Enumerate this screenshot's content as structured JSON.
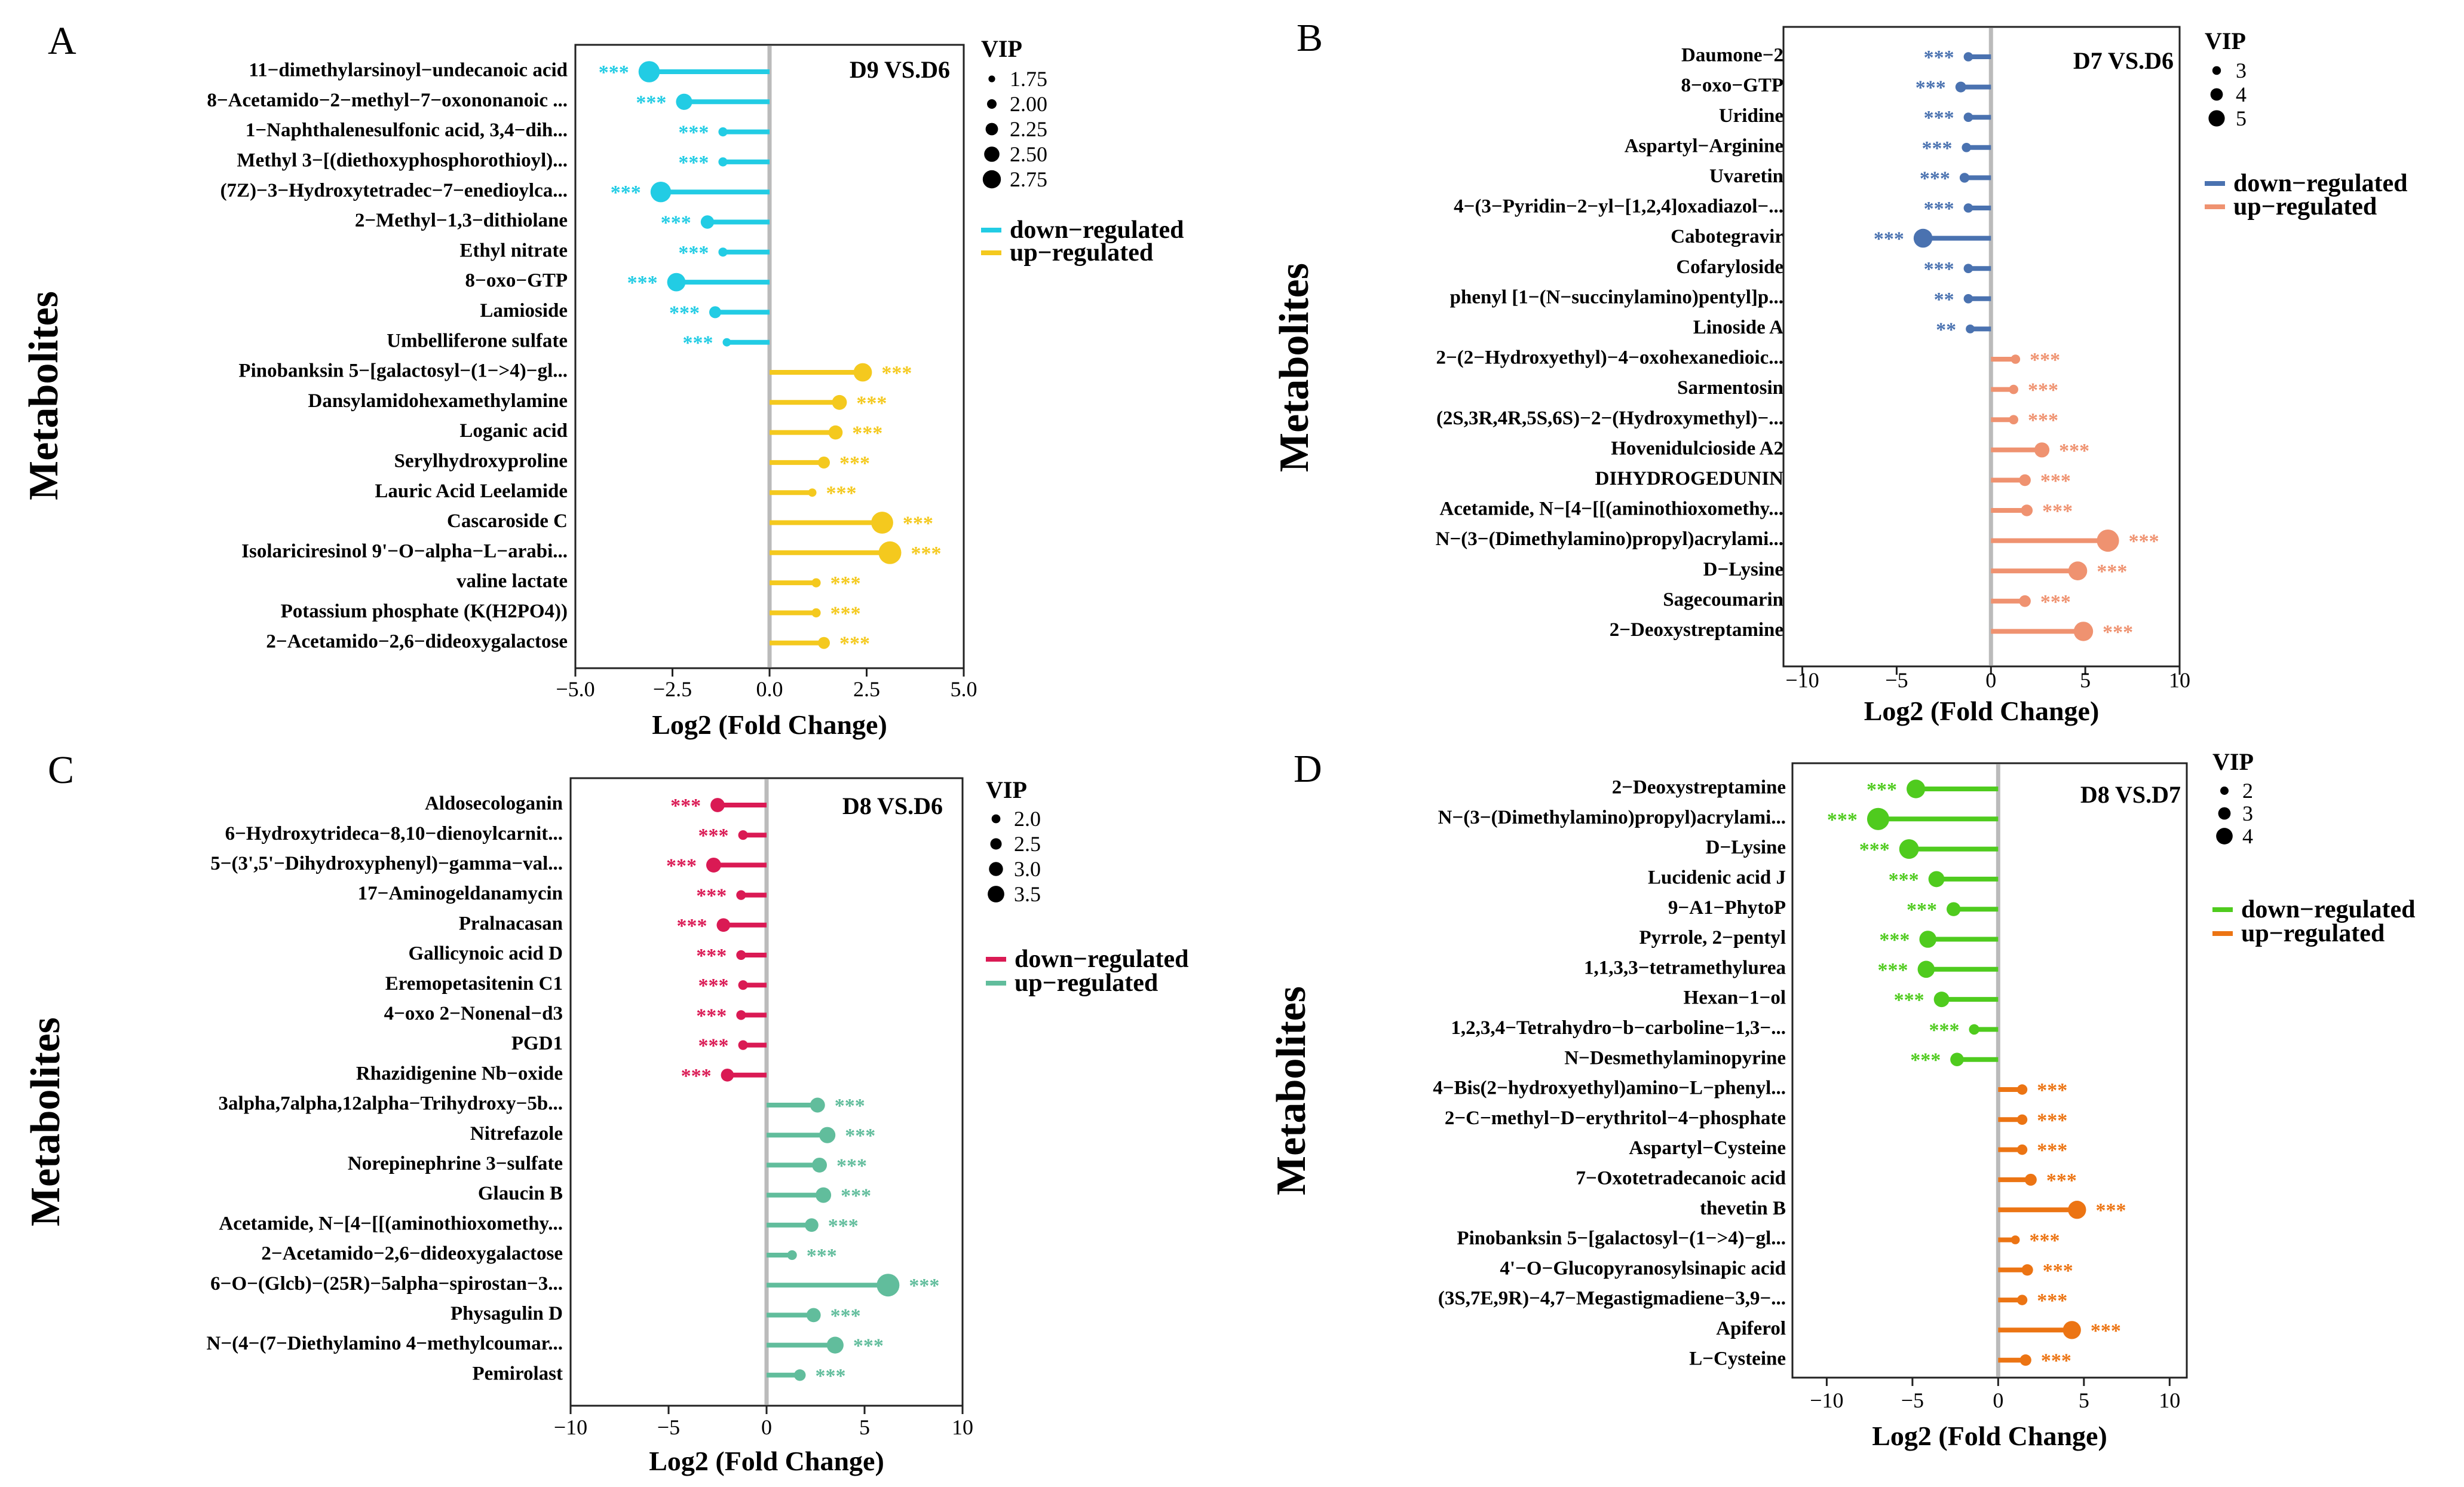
{
  "colors": {
    "panel_A": {
      "down": "#22CCE4",
      "up": "#F4C91E"
    },
    "panel_B": {
      "down": "#4A72B0",
      "up": "#EF9270"
    },
    "panel_C": {
      "down": "#DA1A54",
      "up": "#61BD9C"
    },
    "panel_D": {
      "down": "#4FCB1E",
      "up": "#EC7413"
    },
    "zero_line": "#BBBBBB",
    "axis": "#222222"
  },
  "chart_data": [
    {
      "type": "lollipop",
      "panel": "A",
      "title": "D9 VS.D6",
      "xlabel": "Log2 (Fold Change)",
      "ylabel": "Metabolites",
      "xlim": [
        -5,
        5
      ],
      "xticks": [
        -5.0,
        -2.5,
        0.0,
        2.5,
        5.0
      ],
      "xtick_labels": [
        "−5.0",
        "−2.5",
        "0.0",
        "2.5",
        "5.0"
      ],
      "legend_vip_title": "VIP",
      "vip_legend": [
        "1.75",
        "2.00",
        "2.25",
        "2.50",
        "2.75"
      ],
      "vip_legend_values": [
        1.75,
        2.0,
        2.25,
        2.5,
        2.75
      ],
      "vip_range": [
        1.75,
        2.75
      ],
      "legend_labels": {
        "down": "down−regulated",
        "up": "up−regulated"
      },
      "metabolites": [
        {
          "name": "11−dimethylarsinoyl−undecanoic acid",
          "log2fc": -3.1,
          "vip": 2.65,
          "sig": "***",
          "dir": "down"
        },
        {
          "name": "8−Acetamido−2−methyl−7−oxononanoic ...",
          "log2fc": -2.2,
          "vip": 2.3,
          "sig": "***",
          "dir": "down"
        },
        {
          "name": "1−Naphthalenesulfonic acid, 3,4−dih...",
          "log2fc": -1.2,
          "vip": 1.8,
          "sig": "***",
          "dir": "down"
        },
        {
          "name": "Methyl 3−[(diethoxyphosphorothioyl)...",
          "log2fc": -1.2,
          "vip": 1.8,
          "sig": "***",
          "dir": "down"
        },
        {
          "name": "(7Z)−3−Hydroxytetradec−7−enedioylca...",
          "log2fc": -2.8,
          "vip": 2.6,
          "sig": "***",
          "dir": "down"
        },
        {
          "name": "2−Methyl−1,3−dithiolane",
          "log2fc": -1.6,
          "vip": 2.1,
          "sig": "***",
          "dir": "down"
        },
        {
          "name": "Ethyl nitrate",
          "log2fc": -1.2,
          "vip": 1.8,
          "sig": "***",
          "dir": "down"
        },
        {
          "name": "8−oxo−GTP",
          "log2fc": -2.4,
          "vip": 2.45,
          "sig": "***",
          "dir": "down"
        },
        {
          "name": "Lamioside",
          "log2fc": -1.4,
          "vip": 2.0,
          "sig": "***",
          "dir": "down"
        },
        {
          "name": "Umbelliferone sulfate",
          "log2fc": -1.1,
          "vip": 1.75,
          "sig": "***",
          "dir": "down"
        },
        {
          "name": "Pinobanksin 5−[galactosyl−(1−>4)−gl...",
          "log2fc": 2.4,
          "vip": 2.45,
          "sig": "***",
          "dir": "up"
        },
        {
          "name": "Dansylamidohexamethylamine",
          "log2fc": 1.8,
          "vip": 2.2,
          "sig": "***",
          "dir": "up"
        },
        {
          "name": "Loganic acid",
          "log2fc": 1.7,
          "vip": 2.15,
          "sig": "***",
          "dir": "up"
        },
        {
          "name": "Serylhydroxyproline",
          "log2fc": 1.4,
          "vip": 2.0,
          "sig": "***",
          "dir": "up"
        },
        {
          "name": "Lauric Acid Leelamide",
          "log2fc": 1.1,
          "vip": 1.75,
          "sig": "***",
          "dir": "up"
        },
        {
          "name": "Cascaroside C",
          "log2fc": 2.9,
          "vip": 2.7,
          "sig": "***",
          "dir": "up"
        },
        {
          "name": "Isolariciresinol 9'−O−alpha−L−arabi...",
          "log2fc": 3.1,
          "vip": 2.75,
          "sig": "***",
          "dir": "up"
        },
        {
          "name": "valine lactate",
          "log2fc": 1.2,
          "vip": 1.8,
          "sig": "***",
          "dir": "up"
        },
        {
          "name": "Potassium phosphate (K(H2PO4))",
          "log2fc": 1.2,
          "vip": 1.8,
          "sig": "***",
          "dir": "up"
        },
        {
          "name": "2−Acetamido−2,6−dideoxygalactose",
          "log2fc": 1.4,
          "vip": 2.0,
          "sig": "***",
          "dir": "up"
        }
      ]
    },
    {
      "type": "lollipop",
      "panel": "B",
      "title": "D7 VS.D6",
      "xlabel": "Log2 (Fold Change)",
      "ylabel": "Metabolites",
      "xlim": [
        -11,
        10
      ],
      "xticks": [
        -10,
        -5,
        0,
        5,
        10
      ],
      "xtick_labels": [
        "−10",
        "−5",
        "0",
        "5",
        "10"
      ],
      "legend_vip_title": "VIP",
      "vip_legend": [
        "3",
        "4",
        "5"
      ],
      "vip_legend_values": [
        3,
        4,
        5
      ],
      "vip_range": [
        2.5,
        5.5
      ],
      "legend_labels": {
        "down": "down−regulated",
        "up": "up−regulated"
      },
      "metabolites": [
        {
          "name": "Daumone−2",
          "log2fc": -1.2,
          "vip": 2.7,
          "sig": "***",
          "dir": "down"
        },
        {
          "name": "8−oxo−GTP",
          "log2fc": -1.6,
          "vip": 3.0,
          "sig": "***",
          "dir": "down"
        },
        {
          "name": "Uridine",
          "log2fc": -1.2,
          "vip": 2.7,
          "sig": "***",
          "dir": "down"
        },
        {
          "name": "Aspartyl−Arginine",
          "log2fc": -1.3,
          "vip": 2.7,
          "sig": "***",
          "dir": "down"
        },
        {
          "name": "Uvaretin",
          "log2fc": -1.4,
          "vip": 2.8,
          "sig": "***",
          "dir": "down"
        },
        {
          "name": "4−(3−Pyridin−2−yl−[1,2,4]oxadiazol−...",
          "log2fc": -1.2,
          "vip": 2.7,
          "sig": "***",
          "dir": "down"
        },
        {
          "name": "Cabotegravir",
          "log2fc": -3.6,
          "vip": 4.7,
          "sig": "***",
          "dir": "down"
        },
        {
          "name": "Cofaryloside",
          "log2fc": -1.2,
          "vip": 2.7,
          "sig": "***",
          "dir": "down"
        },
        {
          "name": "phenyl [1−(N−succinylamino)pentyl]p...",
          "log2fc": -1.2,
          "vip": 2.7,
          "sig": "**",
          "dir": "down"
        },
        {
          "name": "Linoside A",
          "log2fc": -1.1,
          "vip": 2.6,
          "sig": "**",
          "dir": "down"
        },
        {
          "name": "2−(2−Hydroxyethyl)−4−oxohexanedioic...",
          "log2fc": 1.3,
          "vip": 2.7,
          "sig": "***",
          "dir": "up"
        },
        {
          "name": "Sarmentosin",
          "log2fc": 1.2,
          "vip": 2.7,
          "sig": "***",
          "dir": "up"
        },
        {
          "name": "(2S,3R,4R,5S,6S)−2−(Hydroxymethyl)−...",
          "log2fc": 1.2,
          "vip": 2.7,
          "sig": "***",
          "dir": "up"
        },
        {
          "name": "Hovenidulcioside A2",
          "log2fc": 2.7,
          "vip": 3.9,
          "sig": "***",
          "dir": "up"
        },
        {
          "name": "DIHYDROGEDUNIN",
          "log2fc": 1.8,
          "vip": 3.2,
          "sig": "***",
          "dir": "up"
        },
        {
          "name": "Acetamide, N−[4−[[(aminothioxomethy...",
          "log2fc": 1.9,
          "vip": 3.2,
          "sig": "***",
          "dir": "up"
        },
        {
          "name": "N−(3−(Dimethylamino)propyl)acrylami...",
          "log2fc": 6.2,
          "vip": 5.4,
          "sig": "***",
          "dir": "up"
        },
        {
          "name": "D−Lysine",
          "log2fc": 4.6,
          "vip": 4.7,
          "sig": "***",
          "dir": "up"
        },
        {
          "name": "Sagecoumarin",
          "log2fc": 1.8,
          "vip": 3.2,
          "sig": "***",
          "dir": "up"
        },
        {
          "name": "2−Deoxystreptamine",
          "log2fc": 4.9,
          "vip": 4.8,
          "sig": "***",
          "dir": "up"
        }
      ]
    },
    {
      "type": "lollipop",
      "panel": "C",
      "title": "D8 VS.D6",
      "xlabel": "Log2 (Fold Change)",
      "ylabel": "Metabolites",
      "xlim": [
        -10,
        10
      ],
      "xticks": [
        -10,
        -5,
        0,
        5,
        10
      ],
      "xtick_labels": [
        "−10",
        "−5",
        "0",
        "5",
        "10"
      ],
      "legend_vip_title": "VIP",
      "vip_legend": [
        "2.0",
        "2.5",
        "3.0",
        "3.5"
      ],
      "vip_legend_values": [
        2.0,
        2.5,
        3.0,
        3.5
      ],
      "vip_range": [
        1.6,
        3.8
      ],
      "legend_labels": {
        "down": "down−regulated",
        "up": "up−regulated"
      },
      "metabolites": [
        {
          "name": "Aldosecologanin",
          "log2fc": -2.5,
          "vip": 2.5,
          "sig": "***",
          "dir": "down"
        },
        {
          "name": "6−Hydroxytrideca−8,10−dienoylcarnit...",
          "log2fc": -1.2,
          "vip": 1.8,
          "sig": "***",
          "dir": "down"
        },
        {
          "name": "5−(3',5'−Dihydroxyphenyl)−gamma−val...",
          "log2fc": -2.7,
          "vip": 2.6,
          "sig": "***",
          "dir": "down"
        },
        {
          "name": "17−Aminogeldanamycin",
          "log2fc": -1.3,
          "vip": 1.8,
          "sig": "***",
          "dir": "down"
        },
        {
          "name": "Pralnacasan",
          "log2fc": -2.2,
          "vip": 2.4,
          "sig": "***",
          "dir": "down"
        },
        {
          "name": "Gallicynoic acid D",
          "log2fc": -1.3,
          "vip": 1.8,
          "sig": "***",
          "dir": "down"
        },
        {
          "name": "Eremopetasitenin C1",
          "log2fc": -1.2,
          "vip": 1.8,
          "sig": "***",
          "dir": "down"
        },
        {
          "name": "4−oxo 2−Nonenal−d3",
          "log2fc": -1.3,
          "vip": 1.8,
          "sig": "***",
          "dir": "down"
        },
        {
          "name": "PGD1",
          "log2fc": -1.2,
          "vip": 1.8,
          "sig": "***",
          "dir": "down"
        },
        {
          "name": "Rhazidigenine Nb−oxide",
          "log2fc": -2.0,
          "vip": 2.3,
          "sig": "***",
          "dir": "down"
        },
        {
          "name": "3alpha,7alpha,12alpha−Trihydroxy−5b...",
          "log2fc": 2.6,
          "vip": 2.6,
          "sig": "***",
          "dir": "up"
        },
        {
          "name": "Nitrefazole",
          "log2fc": 3.1,
          "vip": 2.8,
          "sig": "***",
          "dir": "up"
        },
        {
          "name": "Norepinephrine 3−sulfate",
          "log2fc": 2.7,
          "vip": 2.6,
          "sig": "***",
          "dir": "up"
        },
        {
          "name": "Glaucin B",
          "log2fc": 2.9,
          "vip": 2.7,
          "sig": "***",
          "dir": "up"
        },
        {
          "name": "Acetamide, N−[4−[[(aminothioxomethy...",
          "log2fc": 2.3,
          "vip": 2.4,
          "sig": "***",
          "dir": "up"
        },
        {
          "name": "2−Acetamido−2,6−dideoxygalactose",
          "log2fc": 1.3,
          "vip": 1.8,
          "sig": "***",
          "dir": "up"
        },
        {
          "name": "6−O−(Glcb)−(25R)−5alpha−spirostan−3...",
          "log2fc": 6.2,
          "vip": 3.8,
          "sig": "***",
          "dir": "up"
        },
        {
          "name": "Physagulin D",
          "log2fc": 2.4,
          "vip": 2.5,
          "sig": "***",
          "dir": "up"
        },
        {
          "name": "N−(4−(7−Diethylamino 4−methylcoumar...",
          "log2fc": 3.5,
          "vip": 2.9,
          "sig": "***",
          "dir": "up"
        },
        {
          "name": "Pemirolast",
          "log2fc": 1.7,
          "vip": 2.1,
          "sig": "***",
          "dir": "up"
        }
      ]
    },
    {
      "type": "lollipop",
      "panel": "D",
      "title": "D8 VS.D7",
      "xlabel": "Log2 (Fold Change)",
      "ylabel": "Metabolites",
      "xlim": [
        -12,
        11
      ],
      "xticks": [
        -10,
        -5,
        0,
        5,
        10
      ],
      "xtick_labels": [
        "−10",
        "−5",
        "0",
        "5",
        "10"
      ],
      "legend_vip_title": "VIP",
      "vip_legend": [
        "2",
        "3",
        "4"
      ],
      "vip_legend_values": [
        2,
        3,
        4
      ],
      "vip_range": [
        1.6,
        4.4
      ],
      "legend_labels": {
        "down": "down−regulated",
        "up": "up−regulated"
      },
      "metabolites": [
        {
          "name": "2−Deoxystreptamine",
          "log2fc": -4.8,
          "vip": 3.6,
          "sig": "***",
          "dir": "down"
        },
        {
          "name": "N−(3−(Dimethylamino)propyl)acrylami...",
          "log2fc": -7.0,
          "vip": 4.3,
          "sig": "***",
          "dir": "down"
        },
        {
          "name": "D−Lysine",
          "log2fc": -5.2,
          "vip": 3.8,
          "sig": "***",
          "dir": "down"
        },
        {
          "name": "Lucidenic acid J",
          "log2fc": -3.6,
          "vip": 3.1,
          "sig": "***",
          "dir": "down"
        },
        {
          "name": "9−A1−PhytoP",
          "log2fc": -2.6,
          "vip": 2.7,
          "sig": "***",
          "dir": "down"
        },
        {
          "name": "Pyrrole, 2−pentyl",
          "log2fc": -4.1,
          "vip": 3.3,
          "sig": "***",
          "dir": "down"
        },
        {
          "name": "1,1,3,3−tetramethylurea",
          "log2fc": -4.2,
          "vip": 3.3,
          "sig": "***",
          "dir": "down"
        },
        {
          "name": "Hexan−1−ol",
          "log2fc": -3.3,
          "vip": 3.0,
          "sig": "***",
          "dir": "down"
        },
        {
          "name": "1,2,3,4−Tetrahydro−b−carboline−1,3−...",
          "log2fc": -1.4,
          "vip": 2.0,
          "sig": "***",
          "dir": "down"
        },
        {
          "name": "N−Desmethylaminopyrine",
          "log2fc": -2.4,
          "vip": 2.6,
          "sig": "***",
          "dir": "down"
        },
        {
          "name": "4−Bis(2−hydroxyethyl)amino−L−phenyl...",
          "log2fc": 1.4,
          "vip": 2.0,
          "sig": "***",
          "dir": "up"
        },
        {
          "name": "2−C−methyl−D−erythritol−4−phosphate",
          "log2fc": 1.4,
          "vip": 2.0,
          "sig": "***",
          "dir": "up"
        },
        {
          "name": "Aspartyl−Cysteine",
          "log2fc": 1.4,
          "vip": 2.0,
          "sig": "***",
          "dir": "up"
        },
        {
          "name": "7−Oxotetradecanoic acid",
          "log2fc": 1.9,
          "vip": 2.3,
          "sig": "***",
          "dir": "up"
        },
        {
          "name": "thevetin B",
          "log2fc": 4.6,
          "vip": 3.5,
          "sig": "***",
          "dir": "up"
        },
        {
          "name": "Pinobanksin 5−[galactosyl−(1−>4)−gl...",
          "log2fc": 1.0,
          "vip": 1.7,
          "sig": "***",
          "dir": "up"
        },
        {
          "name": "4'−O−Glucopyranosylsinapic acid",
          "log2fc": 1.7,
          "vip": 2.2,
          "sig": "***",
          "dir": "up"
        },
        {
          "name": "(3S,7E,9R)−4,7−Megastigmadiene−3,9−...",
          "log2fc": 1.4,
          "vip": 2.0,
          "sig": "***",
          "dir": "up"
        },
        {
          "name": "Apiferol",
          "log2fc": 4.3,
          "vip": 3.5,
          "sig": "***",
          "dir": "up"
        },
        {
          "name": "L−Cysteine",
          "log2fc": 1.6,
          "vip": 2.2,
          "sig": "***",
          "dir": "up"
        }
      ]
    }
  ]
}
